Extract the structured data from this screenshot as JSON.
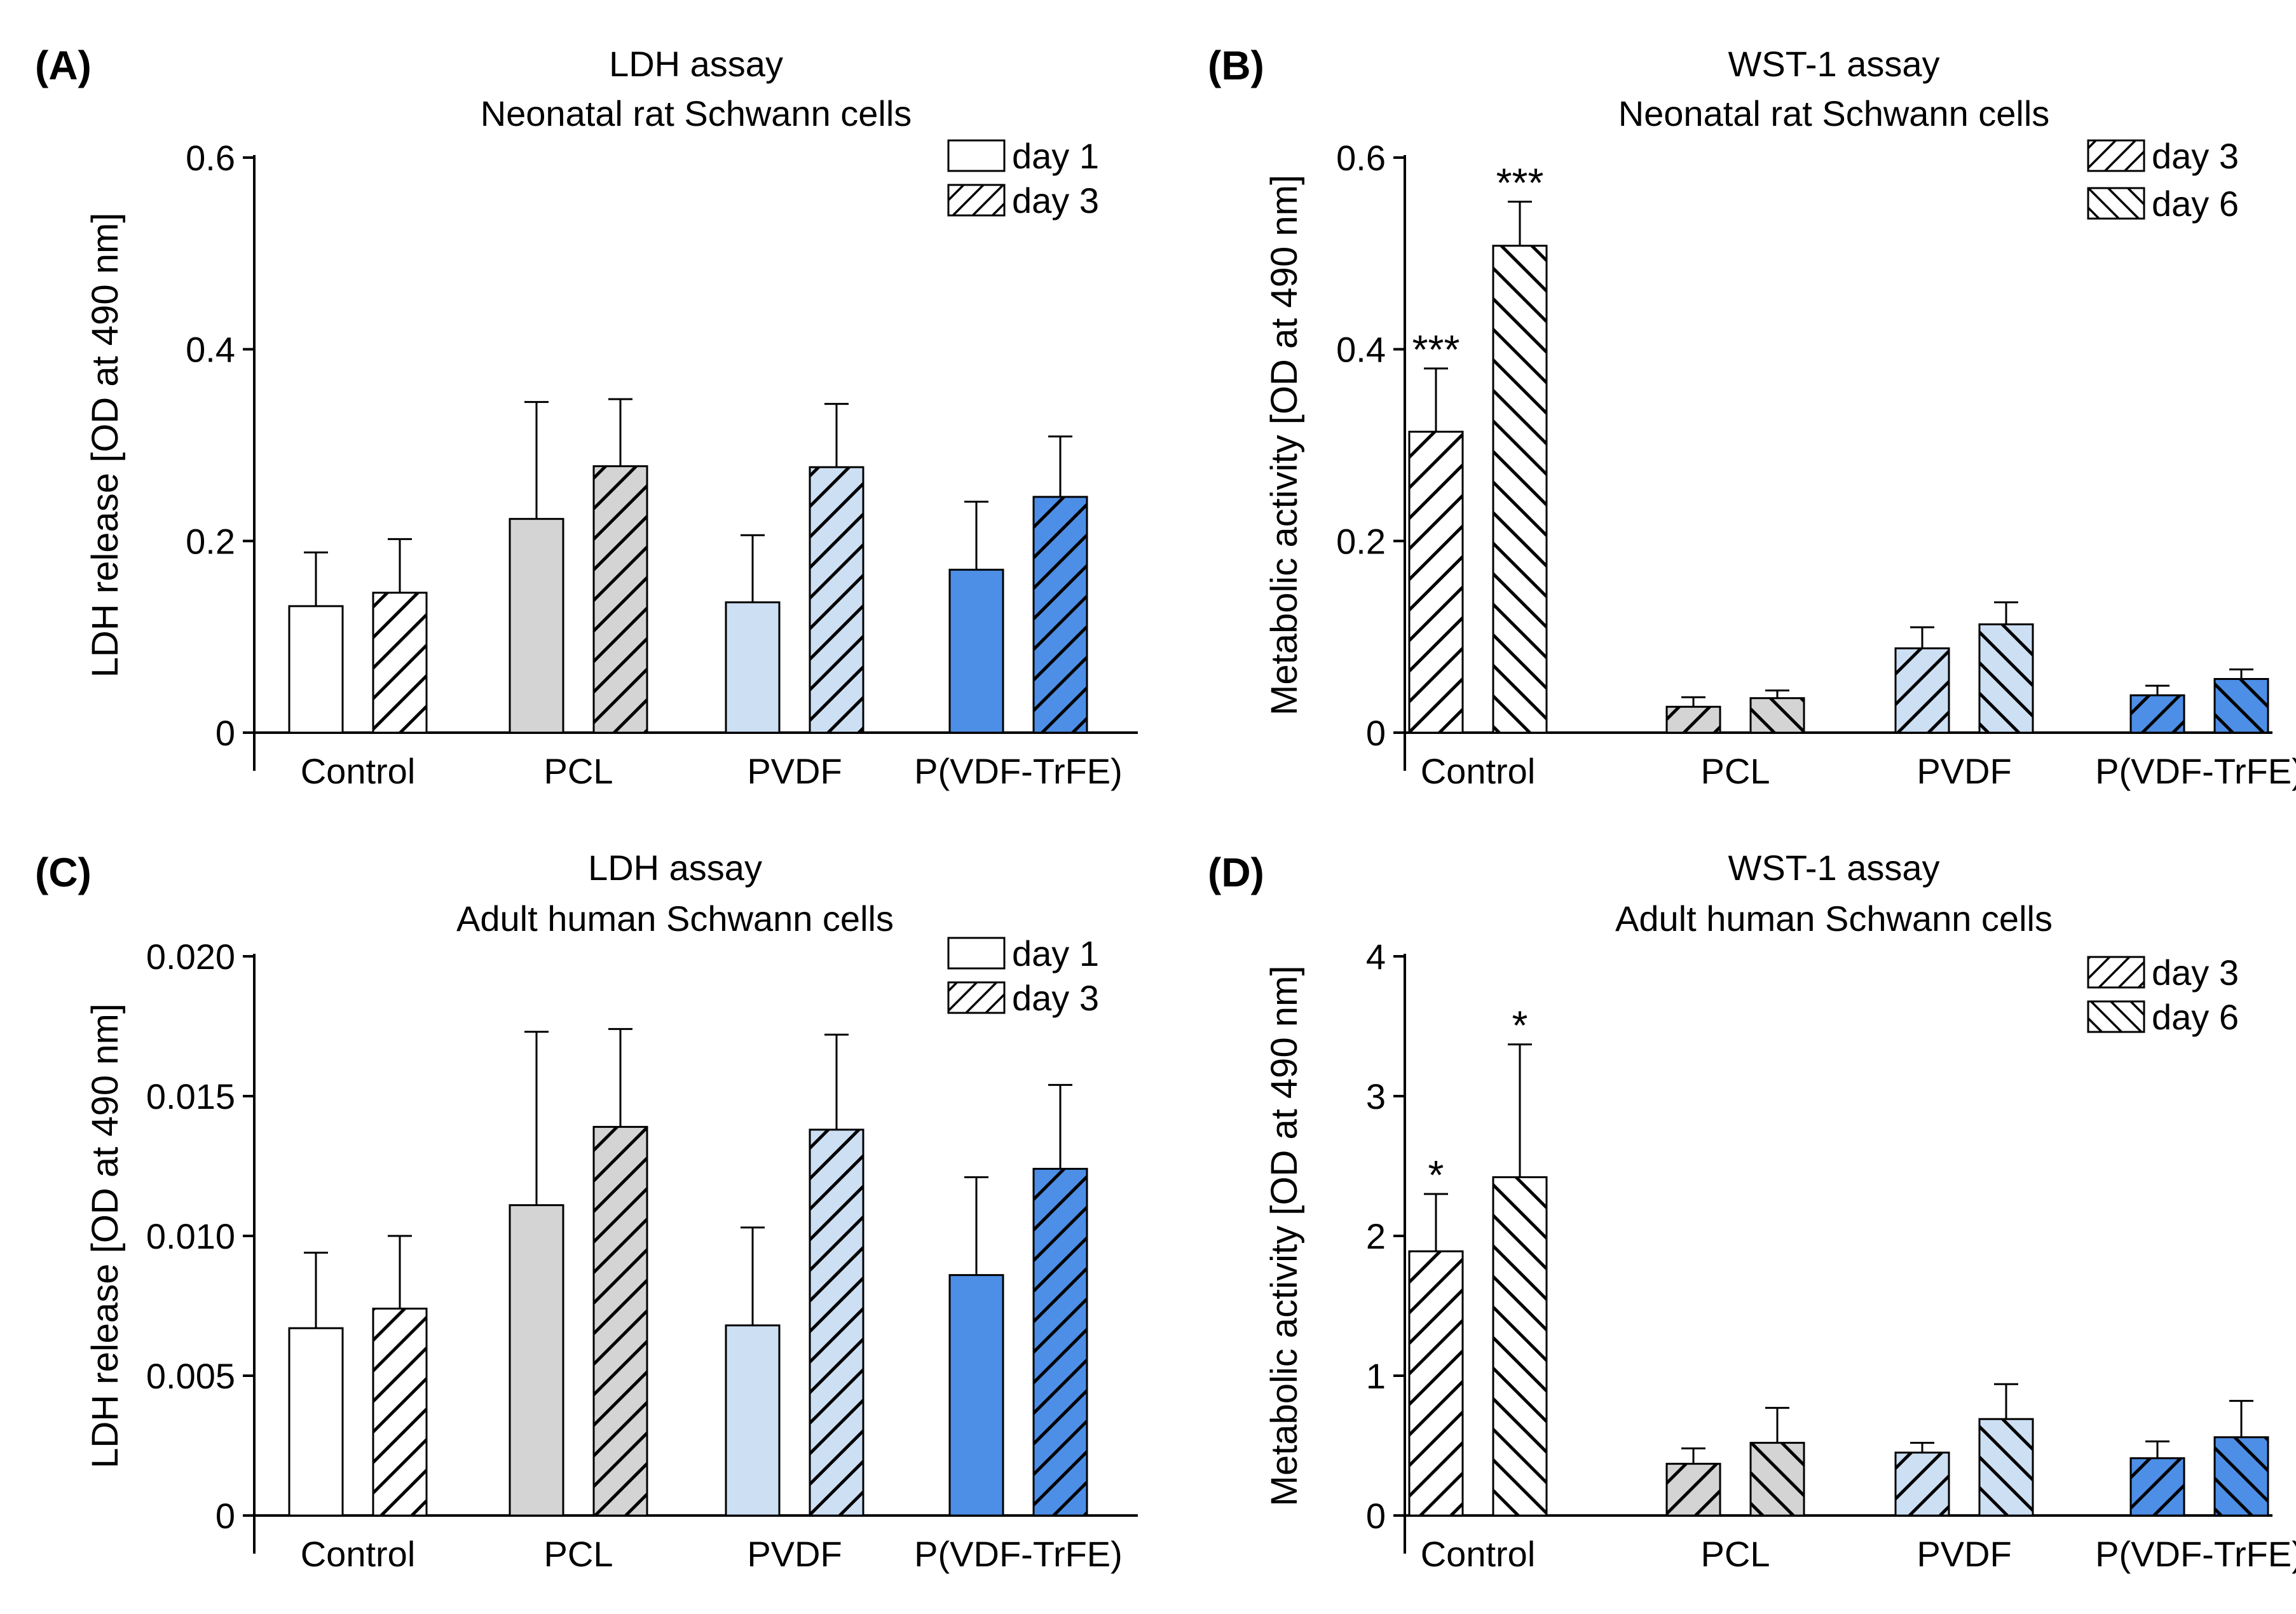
{
  "figure": {
    "domain": "Chart"
  },
  "colors": {
    "Control": "#ffffff",
    "PCL": "#d4d4d4",
    "PVDF": "#cddff3",
    "P(VDF-TrFE)": "#4d8ee6",
    "stroke": "#000000"
  },
  "chart_data": [
    {
      "type": "bar",
      "panel": "(A)",
      "title": [
        "LDH assay",
        "Neonatal rat Schwann cells"
      ],
      "xlabel": "",
      "ylabel": "LDH release [OD at 490 nm]",
      "categories": [
        "Control",
        "PCL",
        "PVDF",
        "P(VDF-TrFE)"
      ],
      "ylim": [
        0,
        0.6
      ],
      "yticks": [
        0,
        0.2,
        0.4,
        0.6
      ],
      "ytick_labels": [
        "0",
        "0.2",
        "0.4",
        "0.6"
      ],
      "legend_position": "top-right",
      "grid": false,
      "series": [
        {
          "name": "day 1",
          "pattern": "none",
          "values": [
            0.132,
            0.223,
            0.136,
            0.17
          ],
          "errors": [
            0.056,
            0.122,
            0.07,
            0.071
          ]
        },
        {
          "name": "day 3",
          "pattern": "hatch-right",
          "values": [
            0.146,
            0.278,
            0.277,
            0.246
          ],
          "errors": [
            0.056,
            0.07,
            0.066,
            0.063
          ]
        }
      ],
      "significance": [
        [
          "",
          "",
          "",
          ""
        ],
        [
          "",
          "",
          "",
          ""
        ]
      ]
    },
    {
      "type": "bar",
      "panel": "(B)",
      "title": [
        "WST-1 assay",
        "Neonatal rat Schwann cells"
      ],
      "xlabel": "",
      "ylabel": "Metabolic activity [OD at 490 nm]",
      "categories": [
        "Control",
        "PCL",
        "PVDF",
        "P(VDF-TrFE)"
      ],
      "ylim": [
        0,
        0.6
      ],
      "yticks": [
        0,
        0.2,
        0.4,
        0.6
      ],
      "ytick_labels": [
        "0",
        "0.2",
        "0.4",
        "0.6"
      ],
      "legend_position": "top-right",
      "grid": false,
      "series": [
        {
          "name": "day 3",
          "pattern": "hatch-right",
          "values": [
            0.314,
            0.027,
            0.088,
            0.039
          ],
          "errors": [
            0.066,
            0.01,
            0.022,
            0.01
          ]
        },
        {
          "name": "day 6",
          "pattern": "hatch-left",
          "values": [
            0.508,
            0.036,
            0.113,
            0.056
          ],
          "errors": [
            0.046,
            0.008,
            0.023,
            0.01
          ]
        }
      ],
      "significance": [
        [
          "***",
          "",
          "",
          ""
        ],
        [
          "***",
          "",
          "",
          ""
        ]
      ]
    },
    {
      "type": "bar",
      "panel": "(C)",
      "title": [
        "LDH assay",
        "Adult human Schwann cells"
      ],
      "xlabel": "",
      "ylabel": "LDH release [OD at 490 nm]",
      "categories": [
        "Control",
        "PCL",
        "PVDF",
        "P(VDF-TrFE)"
      ],
      "ylim": [
        0,
        0.02
      ],
      "yticks": [
        0,
        0.005,
        0.01,
        0.015,
        0.02
      ],
      "ytick_labels": [
        "0",
        "0.005",
        "0.010",
        "0.015",
        "0.020"
      ],
      "legend_position": "top-right",
      "grid": false,
      "series": [
        {
          "name": "day 1",
          "pattern": "none",
          "values": [
            0.0067,
            0.0111,
            0.0068,
            0.0086
          ],
          "errors": [
            0.0027,
            0.0062,
            0.0035,
            0.0035
          ]
        },
        {
          "name": "day 3",
          "pattern": "hatch-right",
          "values": [
            0.0074,
            0.0139,
            0.0138,
            0.0124
          ],
          "errors": [
            0.0026,
            0.0035,
            0.0034,
            0.003
          ]
        }
      ],
      "significance": [
        [
          "",
          "",
          "",
          ""
        ],
        [
          "",
          "",
          "",
          ""
        ]
      ]
    },
    {
      "type": "bar",
      "panel": "(D)",
      "title": [
        "WST-1 assay",
        "Adult human Schwann cells"
      ],
      "xlabel": "",
      "ylabel": "Metabolic activity [OD at 490 nm]",
      "categories": [
        "Control",
        "PCL",
        "PVDF",
        "P(VDF-TrFE)"
      ],
      "ylim": [
        0,
        4
      ],
      "yticks": [
        0,
        1,
        2,
        3,
        4
      ],
      "ytick_labels": [
        "0",
        "1",
        "2",
        "3",
        "4"
      ],
      "legend_position": "top-right",
      "grid": false,
      "series": [
        {
          "name": "day 3",
          "pattern": "hatch-right",
          "values": [
            1.89,
            0.37,
            0.45,
            0.41
          ],
          "errors": [
            0.41,
            0.11,
            0.07,
            0.12
          ]
        },
        {
          "name": "day 6",
          "pattern": "hatch-left",
          "values": [
            2.42,
            0.52,
            0.69,
            0.56
          ],
          "errors": [
            0.95,
            0.25,
            0.25,
            0.26
          ]
        }
      ],
      "significance": [
        [
          "*",
          "",
          "",
          ""
        ],
        [
          "*",
          "",
          "",
          ""
        ]
      ]
    }
  ]
}
